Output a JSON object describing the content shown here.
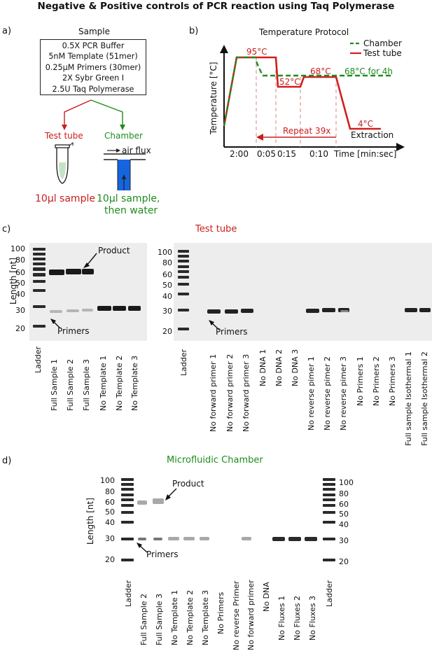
{
  "figure_title": "Negative & Positive controls of PCR reaction using Taq Polymerase",
  "panel_a": {
    "label": "a)",
    "sample_title": "Sample",
    "sample_lines": [
      "0.5X PCR Buffer",
      "5nM Template (51mer)",
      "0.25µM Primers (30mer)",
      "2X Sybr Green I",
      "2.5U Taq Polymerase"
    ],
    "left_branch": "Test tube",
    "right_branch": "Chamber",
    "air_flux": "air flux",
    "left_caption": "10µl sample",
    "right_caption_1": "10µl sample,",
    "right_caption_2": "then water"
  },
  "panel_b": {
    "label": "b)",
    "title": "Temperature Protocol",
    "legend_chamber": "Chamber",
    "legend_tube": "Test tube",
    "ylabel": "Temperature [°C]",
    "xlabel": "Time [min:sec]",
    "t95": "95°C",
    "t52": "52°C",
    "t68": "68°C",
    "t68_4h": "68°C for 4h",
    "t4": "4°C",
    "repeat": "Repeat 39x",
    "extraction": "Extraction",
    "ticks": [
      "2:00",
      "0:05",
      "0:15",
      "0:10"
    ]
  },
  "panel_c": {
    "label": "c)",
    "title": "Test tube",
    "ylabel": "Length [nt]",
    "markers": [
      "100",
      "80",
      "60",
      "50",
      "40",
      "30",
      "20"
    ],
    "product": "Product",
    "primers_left": "Primers",
    "primers_right": "Primers",
    "lanes_left": [
      "Ladder",
      "Full Sample 1",
      "Full Sample 2",
      "Full Sample 3",
      "No Template 1",
      "No Template 2",
      "No Template 3"
    ],
    "lanes_right": [
      "Ladder",
      "No forward primer 1",
      "No forward primer 2",
      "No forward primer 3",
      "No DNA 1",
      "No DNA 2",
      "No DNA 3",
      "No reverse pimer 1",
      "No reverse pimer 2",
      "No reverse pimer 3",
      "No Primers 1",
      "No Primers 2",
      "No Primers 3",
      "Full sample Isothermal 1",
      "Full sample Isothermal 2"
    ]
  },
  "panel_d": {
    "label": "d)",
    "title": "Microfluidic Chamber",
    "ylabel": "Length [nt]",
    "markers": [
      "100",
      "80",
      "60",
      "50",
      "40",
      "30",
      "20"
    ],
    "product": "Product",
    "primers": "Primers",
    "lanes": [
      "Ladder",
      "Full Sample 2",
      "Full Sample 3",
      "No Template 1",
      "No Template 2",
      "No Template 3",
      "No Primers",
      "No reverse Primer",
      "No forward primer",
      "No DNA",
      "No Fluxes 1",
      "No Fluxes 2",
      "No Fluxes 3",
      "Ladder"
    ]
  },
  "colors": {
    "red": "#c81e1e",
    "green": "#1e8c1e",
    "blue": "#1565e0"
  }
}
